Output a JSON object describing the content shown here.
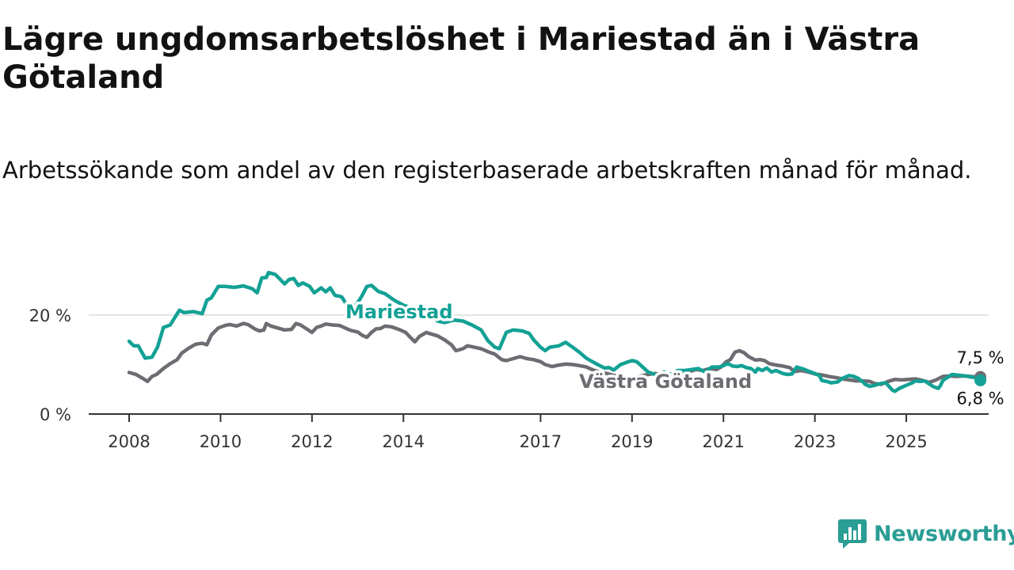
{
  "header": {
    "title": "Lägre ungdomsarbetslöshet i Mariestad än i Västra Götaland",
    "subtitle": "Arbetssökande som andel av den registerbaserade arbetskraften månad för månad."
  },
  "brand": {
    "name": "Newsworthy",
    "icon": "newsworthy-logo-icon",
    "color": "#2a9d94"
  },
  "chart_data": {
    "type": "line",
    "title": "Lägre ungdomsarbetslöshet i Mariestad än i Västra Götaland",
    "subtitle": "Arbetssökande som andel av den registerbaserade arbetskraften månad för månad.",
    "xlabel": "",
    "ylabel": "",
    "x_ticks": [
      "2008",
      "2010",
      "2012",
      "2014",
      "2017",
      "2019",
      "2021",
      "2023",
      "2025"
    ],
    "y_ticks": [
      "0 %",
      "20 %"
    ],
    "xlim": [
      2008.0,
      2025.9
    ],
    "ylim": [
      0,
      30
    ],
    "grid": "horizontal",
    "legend": "inline labels",
    "series": [
      {
        "name": "Mariestad",
        "color": "#13a195",
        "end_label": "6,8 %",
        "points": [
          [
            2008.0,
            14.7
          ],
          [
            2008.1,
            13.8
          ],
          [
            2008.2,
            13.8
          ],
          [
            2008.35,
            11.3
          ],
          [
            2008.5,
            11.5
          ],
          [
            2008.62,
            13.5
          ],
          [
            2008.75,
            17.5
          ],
          [
            2008.9,
            18.0
          ],
          [
            2009.0,
            19.5
          ],
          [
            2009.1,
            21.0
          ],
          [
            2009.2,
            20.5
          ],
          [
            2009.4,
            20.7
          ],
          [
            2009.6,
            20.3
          ],
          [
            2009.7,
            23.0
          ],
          [
            2009.8,
            23.5
          ],
          [
            2009.95,
            25.8
          ],
          [
            2010.1,
            25.8
          ],
          [
            2010.3,
            25.6
          ],
          [
            2010.5,
            25.9
          ],
          [
            2010.7,
            25.3
          ],
          [
            2010.8,
            24.5
          ],
          [
            2010.9,
            27.5
          ],
          [
            2011.0,
            27.6
          ],
          [
            2011.05,
            28.6
          ],
          [
            2011.2,
            28.2
          ],
          [
            2011.4,
            26.3
          ],
          [
            2011.5,
            27.2
          ],
          [
            2011.6,
            27.4
          ],
          [
            2011.7,
            26.0
          ],
          [
            2011.8,
            26.5
          ],
          [
            2011.95,
            25.8
          ],
          [
            2012.05,
            24.5
          ],
          [
            2012.2,
            25.5
          ],
          [
            2012.3,
            24.7
          ],
          [
            2012.4,
            25.5
          ],
          [
            2012.5,
            24.0
          ],
          [
            2012.65,
            23.7
          ],
          [
            2012.8,
            21.5
          ],
          [
            2012.9,
            21.4
          ],
          [
            2013.0,
            22.5
          ],
          [
            2013.1,
            24.0
          ],
          [
            2013.2,
            25.8
          ],
          [
            2013.3,
            26.0
          ],
          [
            2013.45,
            24.8
          ],
          [
            2013.6,
            24.3
          ],
          [
            2013.8,
            23.0
          ],
          [
            2014.0,
            22.0
          ],
          [
            2014.3,
            21.0
          ],
          [
            2014.6,
            20.0
          ],
          [
            2014.75,
            18.8
          ],
          [
            2014.9,
            18.5
          ],
          [
            2015.1,
            19.0
          ],
          [
            2015.3,
            18.8
          ],
          [
            2015.5,
            18.0
          ],
          [
            2015.7,
            17.0
          ],
          [
            2015.85,
            14.8
          ],
          [
            2016.0,
            13.5
          ],
          [
            2016.1,
            13.2
          ],
          [
            2016.25,
            16.5
          ],
          [
            2016.4,
            17.0
          ],
          [
            2016.6,
            16.8
          ],
          [
            2016.75,
            16.3
          ],
          [
            2016.85,
            15.0
          ],
          [
            2017.0,
            13.5
          ],
          [
            2017.1,
            12.8
          ],
          [
            2017.2,
            13.5
          ],
          [
            2017.4,
            13.8
          ],
          [
            2017.55,
            14.5
          ],
          [
            2017.7,
            13.5
          ],
          [
            2017.85,
            12.5
          ],
          [
            2018.0,
            11.3
          ],
          [
            2018.15,
            10.5
          ],
          [
            2018.25,
            10.0
          ],
          [
            2018.4,
            9.3
          ],
          [
            2018.5,
            9.4
          ],
          [
            2018.6,
            8.9
          ],
          [
            2018.75,
            10.0
          ],
          [
            2018.9,
            10.5
          ],
          [
            2019.0,
            10.8
          ],
          [
            2019.1,
            10.6
          ],
          [
            2019.2,
            9.8
          ],
          [
            2019.35,
            8.5
          ],
          [
            2019.5,
            8.0
          ],
          [
            2019.6,
            7.8
          ],
          [
            2019.7,
            8.5
          ],
          [
            2019.8,
            8.0
          ],
          [
            2019.9,
            8.3
          ],
          [
            2020.0,
            8.8
          ],
          [
            2020.15,
            8.8
          ],
          [
            2020.3,
            9.0
          ],
          [
            2020.45,
            9.2
          ],
          [
            2020.6,
            8.5
          ],
          [
            2020.75,
            9.5
          ],
          [
            2020.9,
            9.5
          ],
          [
            2021.0,
            9.8
          ],
          [
            2021.1,
            10.2
          ],
          [
            2021.2,
            9.7
          ],
          [
            2021.3,
            9.6
          ],
          [
            2021.4,
            9.8
          ],
          [
            2021.5,
            9.4
          ],
          [
            2021.6,
            9.2
          ],
          [
            2021.7,
            8.5
          ],
          [
            2021.75,
            9.2
          ],
          [
            2021.85,
            8.8
          ],
          [
            2021.95,
            9.3
          ],
          [
            2022.05,
            8.5
          ],
          [
            2022.15,
            8.8
          ],
          [
            2022.3,
            8.2
          ],
          [
            2022.4,
            8.0
          ],
          [
            2022.5,
            8.1
          ],
          [
            2022.6,
            9.5
          ],
          [
            2022.75,
            9.1
          ],
          [
            2022.85,
            8.7
          ],
          [
            2023.0,
            8.2
          ],
          [
            2023.1,
            7.8
          ],
          [
            2023.15,
            6.8
          ],
          [
            2023.3,
            6.5
          ],
          [
            2023.35,
            6.3
          ],
          [
            2023.5,
            6.5
          ],
          [
            2023.6,
            7.2
          ],
          [
            2023.75,
            7.8
          ],
          [
            2023.85,
            7.6
          ],
          [
            2023.95,
            7.2
          ],
          [
            2024.05,
            6.5
          ],
          [
            2024.1,
            6.0
          ],
          [
            2024.2,
            5.6
          ],
          [
            2024.3,
            5.8
          ],
          [
            2024.45,
            6.2
          ],
          [
            2024.55,
            6.3
          ],
          [
            2024.6,
            5.8
          ],
          [
            2024.7,
            4.8
          ],
          [
            2024.75,
            4.6
          ],
          [
            2024.85,
            5.2
          ],
          [
            2024.95,
            5.6
          ],
          [
            2025.05,
            6.0
          ],
          [
            2025.15,
            6.4
          ],
          [
            2025.2,
            6.7
          ],
          [
            2025.3,
            6.6
          ],
          [
            2025.4,
            6.7
          ],
          [
            2025.5,
            6.1
          ],
          [
            2025.6,
            5.5
          ],
          [
            2025.7,
            5.2
          ],
          [
            2025.75,
            5.8
          ],
          [
            2025.8,
            6.8
          ],
          [
            2025.9,
            7.4
          ],
          [
            2026.0,
            8.0
          ],
          [
            2026.1,
            7.9
          ],
          [
            2026.2,
            7.8
          ],
          [
            2026.3,
            7.7
          ],
          [
            2026.4,
            7.5
          ],
          [
            2026.5,
            7.4
          ],
          [
            2026.6,
            7.3
          ],
          [
            2026.62,
            6.8
          ]
        ]
      },
      {
        "name": "Västra Götaland",
        "color": "#6e6c72",
        "end_label": "7,5 %",
        "points": [
          [
            2008.0,
            8.4
          ],
          [
            2008.15,
            8.0
          ],
          [
            2008.3,
            7.2
          ],
          [
            2008.4,
            6.6
          ],
          [
            2008.5,
            7.6
          ],
          [
            2008.6,
            8.0
          ],
          [
            2008.75,
            9.2
          ],
          [
            2008.9,
            10.2
          ],
          [
            2009.05,
            11.0
          ],
          [
            2009.15,
            12.3
          ],
          [
            2009.3,
            13.3
          ],
          [
            2009.45,
            14.1
          ],
          [
            2009.6,
            14.3
          ],
          [
            2009.7,
            14.0
          ],
          [
            2009.8,
            16.0
          ],
          [
            2009.95,
            17.4
          ],
          [
            2010.1,
            17.9
          ],
          [
            2010.2,
            18.1
          ],
          [
            2010.35,
            17.8
          ],
          [
            2010.5,
            18.3
          ],
          [
            2010.6,
            18.1
          ],
          [
            2010.75,
            17.2
          ],
          [
            2010.85,
            16.8
          ],
          [
            2010.95,
            17.0
          ],
          [
            2011.0,
            18.3
          ],
          [
            2011.1,
            17.8
          ],
          [
            2011.25,
            17.4
          ],
          [
            2011.4,
            17.0
          ],
          [
            2011.55,
            17.1
          ],
          [
            2011.65,
            18.3
          ],
          [
            2011.75,
            18.0
          ],
          [
            2011.85,
            17.4
          ],
          [
            2012.0,
            16.5
          ],
          [
            2012.1,
            17.5
          ],
          [
            2012.2,
            17.8
          ],
          [
            2012.3,
            18.2
          ],
          [
            2012.45,
            18.0
          ],
          [
            2012.6,
            17.9
          ],
          [
            2012.75,
            17.3
          ],
          [
            2012.85,
            16.9
          ],
          [
            2013.0,
            16.6
          ],
          [
            2013.1,
            15.9
          ],
          [
            2013.2,
            15.5
          ],
          [
            2013.3,
            16.5
          ],
          [
            2013.4,
            17.2
          ],
          [
            2013.5,
            17.3
          ],
          [
            2013.6,
            17.8
          ],
          [
            2013.75,
            17.6
          ],
          [
            2013.9,
            17.1
          ],
          [
            2014.05,
            16.5
          ],
          [
            2014.15,
            15.5
          ],
          [
            2014.25,
            14.6
          ],
          [
            2014.35,
            15.7
          ],
          [
            2014.5,
            16.5
          ],
          [
            2014.6,
            16.2
          ],
          [
            2014.75,
            15.8
          ],
          [
            2014.9,
            15.0
          ],
          [
            2015.05,
            14.0
          ],
          [
            2015.15,
            12.8
          ],
          [
            2015.3,
            13.2
          ],
          [
            2015.4,
            13.8
          ],
          [
            2015.55,
            13.5
          ],
          [
            2015.7,
            13.2
          ],
          [
            2015.85,
            12.6
          ],
          [
            2016.0,
            12.1
          ],
          [
            2016.15,
            11.0
          ],
          [
            2016.25,
            10.8
          ],
          [
            2016.4,
            11.2
          ],
          [
            2016.55,
            11.6
          ],
          [
            2016.7,
            11.2
          ],
          [
            2016.85,
            11.0
          ],
          [
            2017.0,
            10.6
          ],
          [
            2017.1,
            10.0
          ],
          [
            2017.25,
            9.6
          ],
          [
            2017.4,
            9.9
          ],
          [
            2017.55,
            10.1
          ],
          [
            2017.7,
            10.0
          ],
          [
            2017.85,
            9.8
          ],
          [
            2018.0,
            9.5
          ],
          [
            2018.15,
            8.9
          ],
          [
            2018.3,
            8.5
          ],
          [
            2018.45,
            8.2
          ],
          [
            2018.6,
            7.8
          ],
          [
            2018.75,
            7.6
          ],
          [
            2018.9,
            7.5
          ],
          [
            2019.05,
            7.4
          ],
          [
            2019.2,
            7.7
          ],
          [
            2019.35,
            8.0
          ],
          [
            2019.5,
            8.2
          ],
          [
            2019.65,
            8.0
          ],
          [
            2019.8,
            7.7
          ],
          [
            2019.95,
            7.9
          ],
          [
            2020.1,
            8.2
          ],
          [
            2020.25,
            8.6
          ],
          [
            2020.4,
            9.0
          ],
          [
            2020.55,
            8.8
          ],
          [
            2020.7,
            9.2
          ],
          [
            2020.85,
            9.0
          ],
          [
            2020.95,
            9.5
          ],
          [
            2021.05,
            10.5
          ],
          [
            2021.15,
            11.0
          ],
          [
            2021.25,
            12.5
          ],
          [
            2021.35,
            12.8
          ],
          [
            2021.45,
            12.4
          ],
          [
            2021.55,
            11.6
          ],
          [
            2021.7,
            10.9
          ],
          [
            2021.8,
            11.0
          ],
          [
            2021.9,
            10.8
          ],
          [
            2022.0,
            10.2
          ],
          [
            2022.15,
            9.9
          ],
          [
            2022.3,
            9.7
          ],
          [
            2022.45,
            9.4
          ],
          [
            2022.55,
            8.6
          ],
          [
            2022.7,
            8.8
          ],
          [
            2022.85,
            8.5
          ],
          [
            2023.0,
            8.1
          ],
          [
            2023.15,
            7.9
          ],
          [
            2023.3,
            7.6
          ],
          [
            2023.45,
            7.4
          ],
          [
            2023.6,
            7.1
          ],
          [
            2023.75,
            6.9
          ],
          [
            2023.9,
            6.7
          ],
          [
            2024.05,
            6.7
          ],
          [
            2024.2,
            6.6
          ],
          [
            2024.3,
            6.2
          ],
          [
            2024.45,
            6.0
          ],
          [
            2024.6,
            6.6
          ],
          [
            2024.75,
            7.0
          ],
          [
            2024.9,
            6.9
          ],
          [
            2025.05,
            7.0
          ],
          [
            2025.2,
            7.1
          ],
          [
            2025.35,
            6.8
          ],
          [
            2025.5,
            6.4
          ],
          [
            2025.65,
            6.9
          ],
          [
            2025.8,
            7.6
          ],
          [
            2025.95,
            7.7
          ],
          [
            2026.1,
            7.6
          ],
          [
            2026.25,
            7.7
          ],
          [
            2026.4,
            7.6
          ],
          [
            2026.5,
            7.5
          ],
          [
            2026.62,
            7.5
          ]
        ]
      }
    ]
  }
}
